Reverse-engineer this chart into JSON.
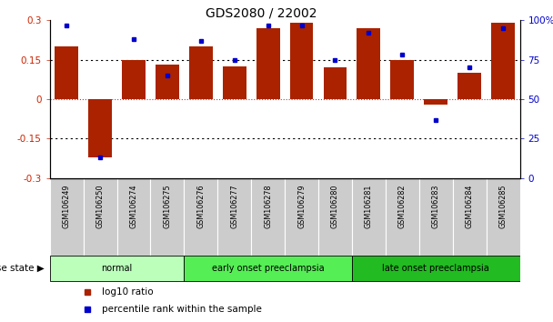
{
  "title": "GDS2080 / 22002",
  "samples": [
    "GSM106249",
    "GSM106250",
    "GSM106274",
    "GSM106275",
    "GSM106276",
    "GSM106277",
    "GSM106278",
    "GSM106279",
    "GSM106280",
    "GSM106281",
    "GSM106282",
    "GSM106283",
    "GSM106284",
    "GSM106285"
  ],
  "log10_ratio": [
    0.2,
    -0.22,
    0.15,
    0.13,
    0.2,
    0.125,
    0.27,
    0.29,
    0.12,
    0.27,
    0.15,
    -0.02,
    0.1,
    0.29
  ],
  "percentile_rank": [
    97,
    13,
    88,
    65,
    87,
    75,
    97,
    97,
    75,
    92,
    78,
    37,
    70,
    95
  ],
  "groups": [
    {
      "label": "normal",
      "start": 0,
      "end": 4,
      "color": "#bbffbb"
    },
    {
      "label": "early onset preeclampsia",
      "start": 4,
      "end": 9,
      "color": "#55ee55"
    },
    {
      "label": "late onset preeclampsia",
      "start": 9,
      "end": 14,
      "color": "#22bb22"
    }
  ],
  "ylim_left": [
    -0.3,
    0.3
  ],
  "ylim_right": [
    0,
    100
  ],
  "yticks_left": [
    -0.3,
    -0.15,
    0,
    0.15,
    0.3
  ],
  "yticks_right": [
    0,
    25,
    50,
    75,
    100
  ],
  "ytick_labels_left": [
    "-0.3",
    "-0.15",
    "0",
    "0.15",
    "0.3"
  ],
  "ytick_labels_right": [
    "0",
    "25",
    "50",
    "75",
    "100%"
  ],
  "bar_color": "#aa2200",
  "dot_color": "#0000cc",
  "hline_y": [
    0.15,
    0.0,
    -0.15
  ],
  "legend_items": [
    {
      "label": "log10 ratio",
      "color": "#aa2200"
    },
    {
      "label": "percentile rank within the sample",
      "color": "#0000cc"
    }
  ],
  "disease_state_label": "disease state",
  "bar_width": 0.7
}
